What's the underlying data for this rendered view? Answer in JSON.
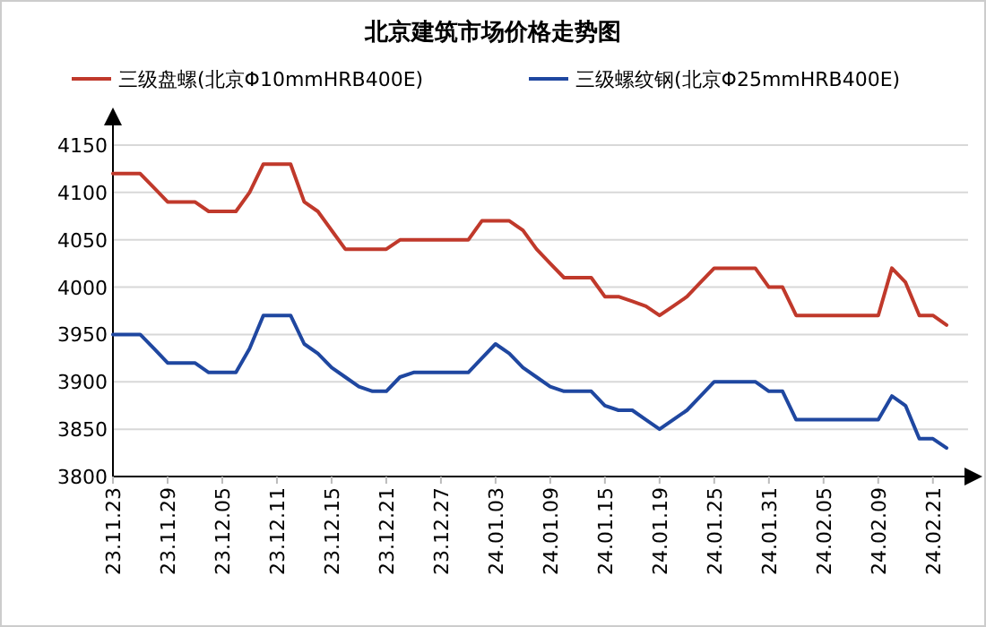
{
  "chart_data": {
    "type": "line",
    "title": "北京建筑市场价格走势图",
    "categories": [
      "23.11.23",
      null,
      null,
      null,
      "23.11.29",
      null,
      null,
      null,
      "23.12.05",
      null,
      null,
      null,
      "23.12.11",
      null,
      null,
      null,
      "23.12.15",
      null,
      null,
      null,
      "23.12.21",
      null,
      null,
      null,
      "23.12.27",
      null,
      null,
      null,
      "24.01.03",
      null,
      null,
      null,
      "24.01.09",
      null,
      null,
      null,
      "24.01.15",
      null,
      null,
      null,
      "24.01.19",
      null,
      null,
      null,
      "24.01.25",
      null,
      null,
      null,
      "24.01.31",
      null,
      null,
      null,
      "24.02.05",
      null,
      null,
      null,
      "24.02.09",
      null,
      null,
      null,
      "24.02.21",
      null
    ],
    "series": [
      {
        "name": "三级盘螺(北京Φ10mmHRB400E)",
        "color": "#c0392b",
        "values": [
          4120,
          4120,
          4120,
          4105,
          4090,
          4090,
          4090,
          4080,
          4080,
          4080,
          4100,
          4130,
          4130,
          4130,
          4090,
          4080,
          4060,
          4040,
          4040,
          4040,
          4040,
          4050,
          4050,
          4050,
          4050,
          4050,
          4050,
          4070,
          4070,
          4070,
          4060,
          4040,
          4025,
          4010,
          4010,
          4010,
          3990,
          3990,
          3985,
          3980,
          3970,
          3980,
          3990,
          4005,
          4020,
          4020,
          4020,
          4020,
          4000,
          4000,
          3970,
          3970,
          3970,
          3970,
          3970,
          3970,
          3970,
          4020,
          4005,
          3970,
          3970,
          3960
        ]
      },
      {
        "name": "三级螺纹钢(北京Φ25mmHRB400E)",
        "color": "#1f47a0",
        "values": [
          3950,
          3950,
          3950,
          3935,
          3920,
          3920,
          3920,
          3910,
          3910,
          3910,
          3935,
          3970,
          3970,
          3970,
          3940,
          3930,
          3915,
          3905,
          3895,
          3890,
          3890,
          3905,
          3910,
          3910,
          3910,
          3910,
          3910,
          3925,
          3940,
          3930,
          3915,
          3905,
          3895,
          3890,
          3890,
          3890,
          3875,
          3870,
          3870,
          3860,
          3850,
          3860,
          3870,
          3885,
          3900,
          3900,
          3900,
          3900,
          3890,
          3890,
          3860,
          3860,
          3860,
          3860,
          3860,
          3860,
          3860,
          3885,
          3875,
          3840,
          3840,
          3830
        ]
      }
    ],
    "ylim": [
      3800,
      4150
    ],
    "yticks": [
      3800,
      3850,
      3900,
      3950,
      4000,
      4050,
      4100,
      4150
    ],
    "grid": "y",
    "legend": "top",
    "marker": "none",
    "line_style": "solid"
  }
}
